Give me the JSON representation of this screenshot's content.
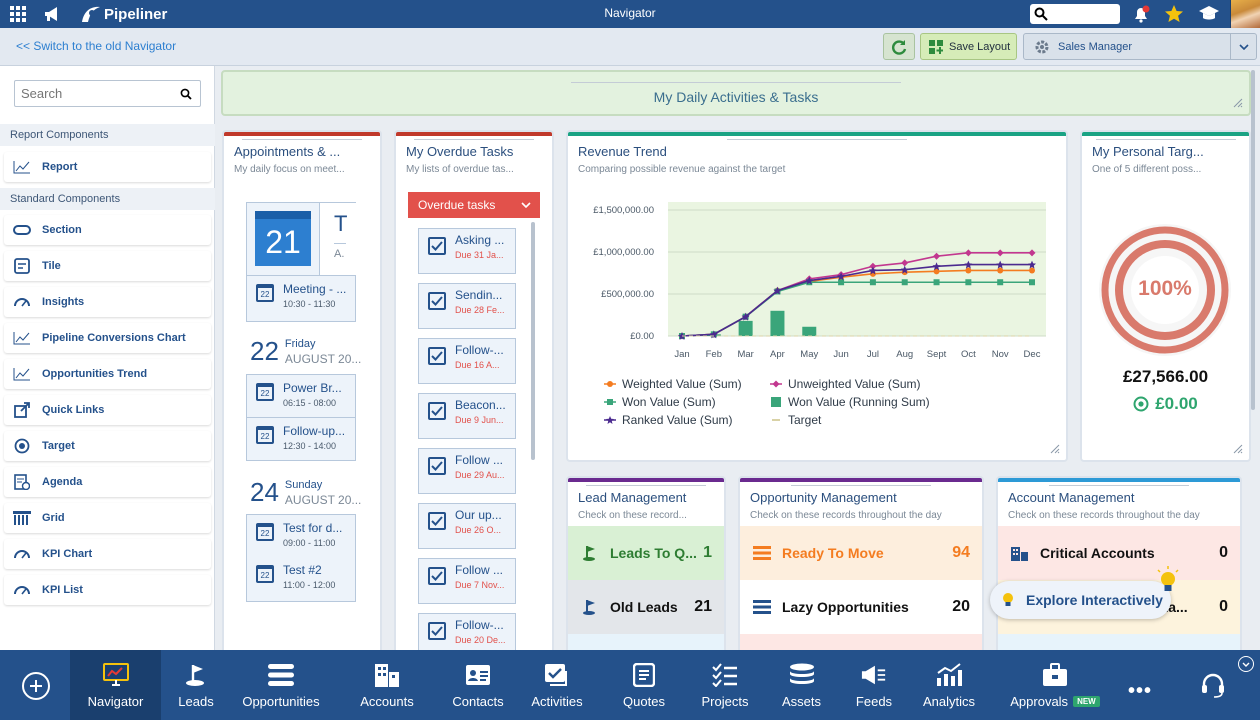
{
  "topbar": {
    "app_name": "Pipeliner",
    "title": "Navigator"
  },
  "subbar": {
    "switch_link": "<< Switch to the old Navigator",
    "save_layout": "Save Layout",
    "profile": "Sales Manager"
  },
  "sidebar": {
    "search_placeholder": "Search",
    "report_components": "Report Components",
    "standard_components": "Standard Components",
    "report": "Report",
    "items": [
      "Section",
      "Tile",
      "Insights",
      "Pipeline Conversions Chart",
      "Opportunities Trend",
      "Quick Links",
      "Target",
      "Agenda",
      "Grid",
      "KPI Chart",
      "KPI List"
    ]
  },
  "banner": {
    "title": "My Daily Activities & Tasks"
  },
  "appointments": {
    "title": "Appointments & ...",
    "subtitle": "My daily focus on meet...",
    "day1": {
      "num": "21",
      "card_letter": "T",
      "card_sub": "A."
    },
    "day1_items": [
      {
        "title": "Meeting - ...",
        "time": "10:30 - 11:30"
      }
    ],
    "day2": {
      "num": "22",
      "weekday": "Friday",
      "month": "AUGUST 20..."
    },
    "day2_items": [
      {
        "title": "Power Br...",
        "time": "06:15 - 08:00"
      },
      {
        "title": "Follow-up...",
        "time": "12:30 - 14:00"
      }
    ],
    "day3": {
      "num": "24",
      "weekday": "Sunday",
      "month": "AUGUST 20..."
    },
    "day3_items": [
      {
        "title": "Test for d...",
        "time": "09:00 - 11:00"
      },
      {
        "title": "Test #2",
        "time": "11:00 - 12:00"
      }
    ],
    "cal_num": "22"
  },
  "overdue": {
    "title": "My Overdue Tasks",
    "subtitle": "My lists of overdue tas...",
    "dropdown": "Overdue tasks",
    "tasks": [
      {
        "title": "Asking ...",
        "due": "Due 31 Ja..."
      },
      {
        "title": "Sendin...",
        "due": "Due 28 Fe..."
      },
      {
        "title": "Follow-...",
        "due": "Due 16 A..."
      },
      {
        "title": "Beacon...",
        "due": "Due 9 Jun..."
      },
      {
        "title": "Follow ...",
        "due": "Due 29 Au..."
      },
      {
        "title": "Our up...",
        "due": "Due 26 O..."
      },
      {
        "title": "Follow ...",
        "due": "Due 7 Nov..."
      },
      {
        "title": "Follow-...",
        "due": "Due 20 De..."
      }
    ]
  },
  "revenue": {
    "title": "Revenue Trend",
    "subtitle": "Comparing possible revenue against the target"
  },
  "chart_data": {
    "type": "line",
    "title": "Revenue Trend",
    "categories": [
      "Jan",
      "Feb",
      "Mar",
      "Apr",
      "May",
      "Jun",
      "Jul",
      "Aug",
      "Sept",
      "Oct",
      "Nov",
      "Dec"
    ],
    "y_ticks": [
      "£1,500,000.00",
      "£1,000,000.00",
      "£500,000.00",
      "£0.00"
    ],
    "ylim": [
      0,
      1500000
    ],
    "series": [
      {
        "name": "Weighted Value (Sum)",
        "color": "#f47c20",
        "values": [
          0,
          20000,
          230000,
          540000,
          650000,
          700000,
          740000,
          760000,
          770000,
          780000,
          780000,
          780000
        ]
      },
      {
        "name": "Unweighted Value (Sum)",
        "color": "#c2378f",
        "values": [
          0,
          20000,
          230000,
          540000,
          680000,
          730000,
          830000,
          870000,
          950000,
          990000,
          990000,
          990000
        ]
      },
      {
        "name": "Won Value (Sum)",
        "color": "#3aa57a",
        "values": [
          0,
          20000,
          230000,
          530000,
          640000,
          640000,
          640000,
          640000,
          640000,
          640000,
          640000,
          640000
        ]
      },
      {
        "name": "Won Value (Running Sum)",
        "color": "#3aa57a",
        "bars": [
          0,
          20000,
          180000,
          300000,
          110000,
          0,
          0,
          0,
          0,
          0,
          0,
          0
        ]
      },
      {
        "name": "Ranked Value (Sum)",
        "color": "#4b2a8f",
        "values": [
          0,
          20000,
          230000,
          540000,
          660000,
          710000,
          780000,
          790000,
          830000,
          850000,
          850000,
          850000
        ]
      },
      {
        "name": "Target",
        "color": "#d9d2a6",
        "values": [
          0,
          0,
          0,
          0,
          0,
          0,
          0,
          0,
          0,
          0,
          0,
          0
        ]
      }
    ],
    "grid": true,
    "legend": "bottom"
  },
  "target": {
    "title": "My Personal Targ...",
    "subtitle": "One of 5 different poss...",
    "percent": "100%",
    "amount": "£27,566.00",
    "won": "£0.00"
  },
  "lead": {
    "title": "Lead Management",
    "subtitle": "Check on these record...",
    "rows": [
      {
        "label": "Leads To Q...",
        "value": "1"
      },
      {
        "label": "Old Leads",
        "value": "21"
      }
    ]
  },
  "opportunity": {
    "title": "Opportunity Management",
    "subtitle": "Check on these records throughout the day",
    "rows": [
      {
        "label": "Ready To Move",
        "value": "94"
      },
      {
        "label": "Lazy Opportunities",
        "value": "20"
      }
    ]
  },
  "account": {
    "title": "Account Management",
    "subtitle": "Check on these records throughout the day",
    "rows": [
      {
        "label": "Critical Accounts",
        "value": "0"
      },
      {
        "label": "e La...",
        "value": "0"
      }
    ]
  },
  "explore": {
    "label": "Explore Interactively"
  },
  "bottom_nav": {
    "items": [
      "Navigator",
      "Leads",
      "Opportunities",
      "Accounts",
      "Contacts",
      "Activities",
      "Quotes",
      "Projects",
      "Assets",
      "Feeds",
      "Analytics",
      "Approvals"
    ],
    "new_badge": "NEW"
  },
  "colors": {
    "primary": "#24518b",
    "accent_red": "#c0392b",
    "accent_teal": "#1aa384",
    "accent_purple": "#6a2a8f",
    "accent_blue": "#2d9ad6"
  }
}
